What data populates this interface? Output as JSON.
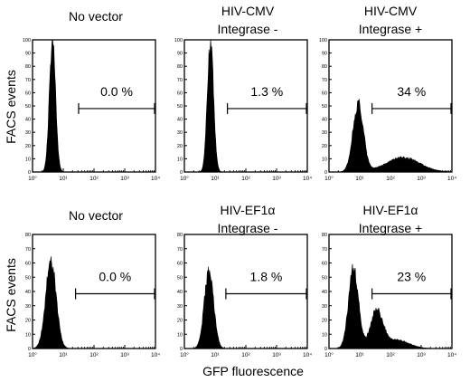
{
  "figure": {
    "ylabel": "FACS events",
    "xlabel": "GFP fluorescence"
  },
  "chart_data": [
    {
      "type": "histogram",
      "title_line1": "No vector",
      "title_line2": "",
      "percent_label": "0.0 %",
      "gate_log10": [
        1.5,
        4.0
      ],
      "ylim": [
        0,
        100
      ],
      "yticks": [
        "0",
        "10",
        "20",
        "30",
        "40",
        "50",
        "60",
        "70",
        "80",
        "90",
        "100"
      ],
      "xscale": "log",
      "xticks": [
        "10°",
        "10¹",
        "10²",
        "10³",
        "10⁴"
      ],
      "peaks": [
        {
          "log10": 0.65,
          "height": 100,
          "sigma": 0.1
        }
      ]
    },
    {
      "type": "histogram",
      "title_line1": "HIV-CMV",
      "title_line2": "Integrase -",
      "percent_label": "1.3 %",
      "gate_log10": [
        1.4,
        4.0
      ],
      "ylim": [
        0,
        100
      ],
      "yticks": [
        "0",
        "10",
        "20",
        "30",
        "40",
        "50",
        "60",
        "70",
        "80",
        "90",
        "100"
      ],
      "xscale": "log",
      "xticks": [
        "10°",
        "10¹",
        "10²",
        "10³",
        "10⁴"
      ],
      "peaks": [
        {
          "log10": 0.85,
          "height": 100,
          "sigma": 0.1
        }
      ]
    },
    {
      "type": "histogram",
      "title_line1": "HIV-CMV",
      "title_line2": "Integrase +",
      "percent_label": "34 %",
      "gate_log10": [
        1.4,
        4.0
      ],
      "ylim": [
        0,
        100
      ],
      "yticks": [
        "0",
        "10",
        "20",
        "30",
        "40",
        "50",
        "60",
        "70",
        "80",
        "90",
        "100"
      ],
      "xscale": "log",
      "xticks": [
        "10°",
        "10¹",
        "10²",
        "10³",
        "10⁴"
      ],
      "peaks": [
        {
          "log10": 0.95,
          "height": 52,
          "sigma": 0.17
        },
        {
          "log10": 2.4,
          "height": 11,
          "sigma": 0.55
        }
      ]
    },
    {
      "type": "histogram",
      "title_line1": "No vector",
      "title_line2": "",
      "percent_label": "0.0 %",
      "gate_log10": [
        1.4,
        4.0
      ],
      "ylim": [
        0,
        80
      ],
      "yticks": [
        "0",
        "10",
        "20",
        "30",
        "40",
        "50",
        "60",
        "70",
        "80"
      ],
      "xscale": "log",
      "xticks": [
        "10°",
        "10¹",
        "10²",
        "10³",
        "10⁴"
      ],
      "peaks": [
        {
          "log10": 0.6,
          "height": 62,
          "sigma": 0.17
        }
      ]
    },
    {
      "type": "histogram",
      "title_line1": "HIV-EF1α",
      "title_line2": "Integrase -",
      "percent_label": "1.8 %",
      "gate_log10": [
        1.35,
        4.0
      ],
      "ylim": [
        0,
        80
      ],
      "yticks": [
        "0",
        "10",
        "20",
        "30",
        "40",
        "50",
        "60",
        "70",
        "80"
      ],
      "xscale": "log",
      "xticks": [
        "10°",
        "10¹",
        "10²",
        "10³",
        "10⁴"
      ],
      "peaks": [
        {
          "log10": 0.8,
          "height": 55,
          "sigma": 0.15
        }
      ]
    },
    {
      "type": "histogram",
      "title_line1": "HIV-EF1α",
      "title_line2": "Integrase +",
      "percent_label": "23 %",
      "gate_log10": [
        1.4,
        4.0
      ],
      "ylim": [
        0,
        80
      ],
      "yticks": [
        "0",
        "10",
        "20",
        "30",
        "40",
        "50",
        "60",
        "70",
        "80"
      ],
      "xscale": "log",
      "xticks": [
        "10°",
        "10¹",
        "10²",
        "10³",
        "10⁴"
      ],
      "peaks": [
        {
          "log10": 0.8,
          "height": 57,
          "sigma": 0.16
        },
        {
          "log10": 1.55,
          "height": 26,
          "sigma": 0.2
        },
        {
          "log10": 2.2,
          "height": 6,
          "sigma": 0.4
        }
      ]
    }
  ]
}
